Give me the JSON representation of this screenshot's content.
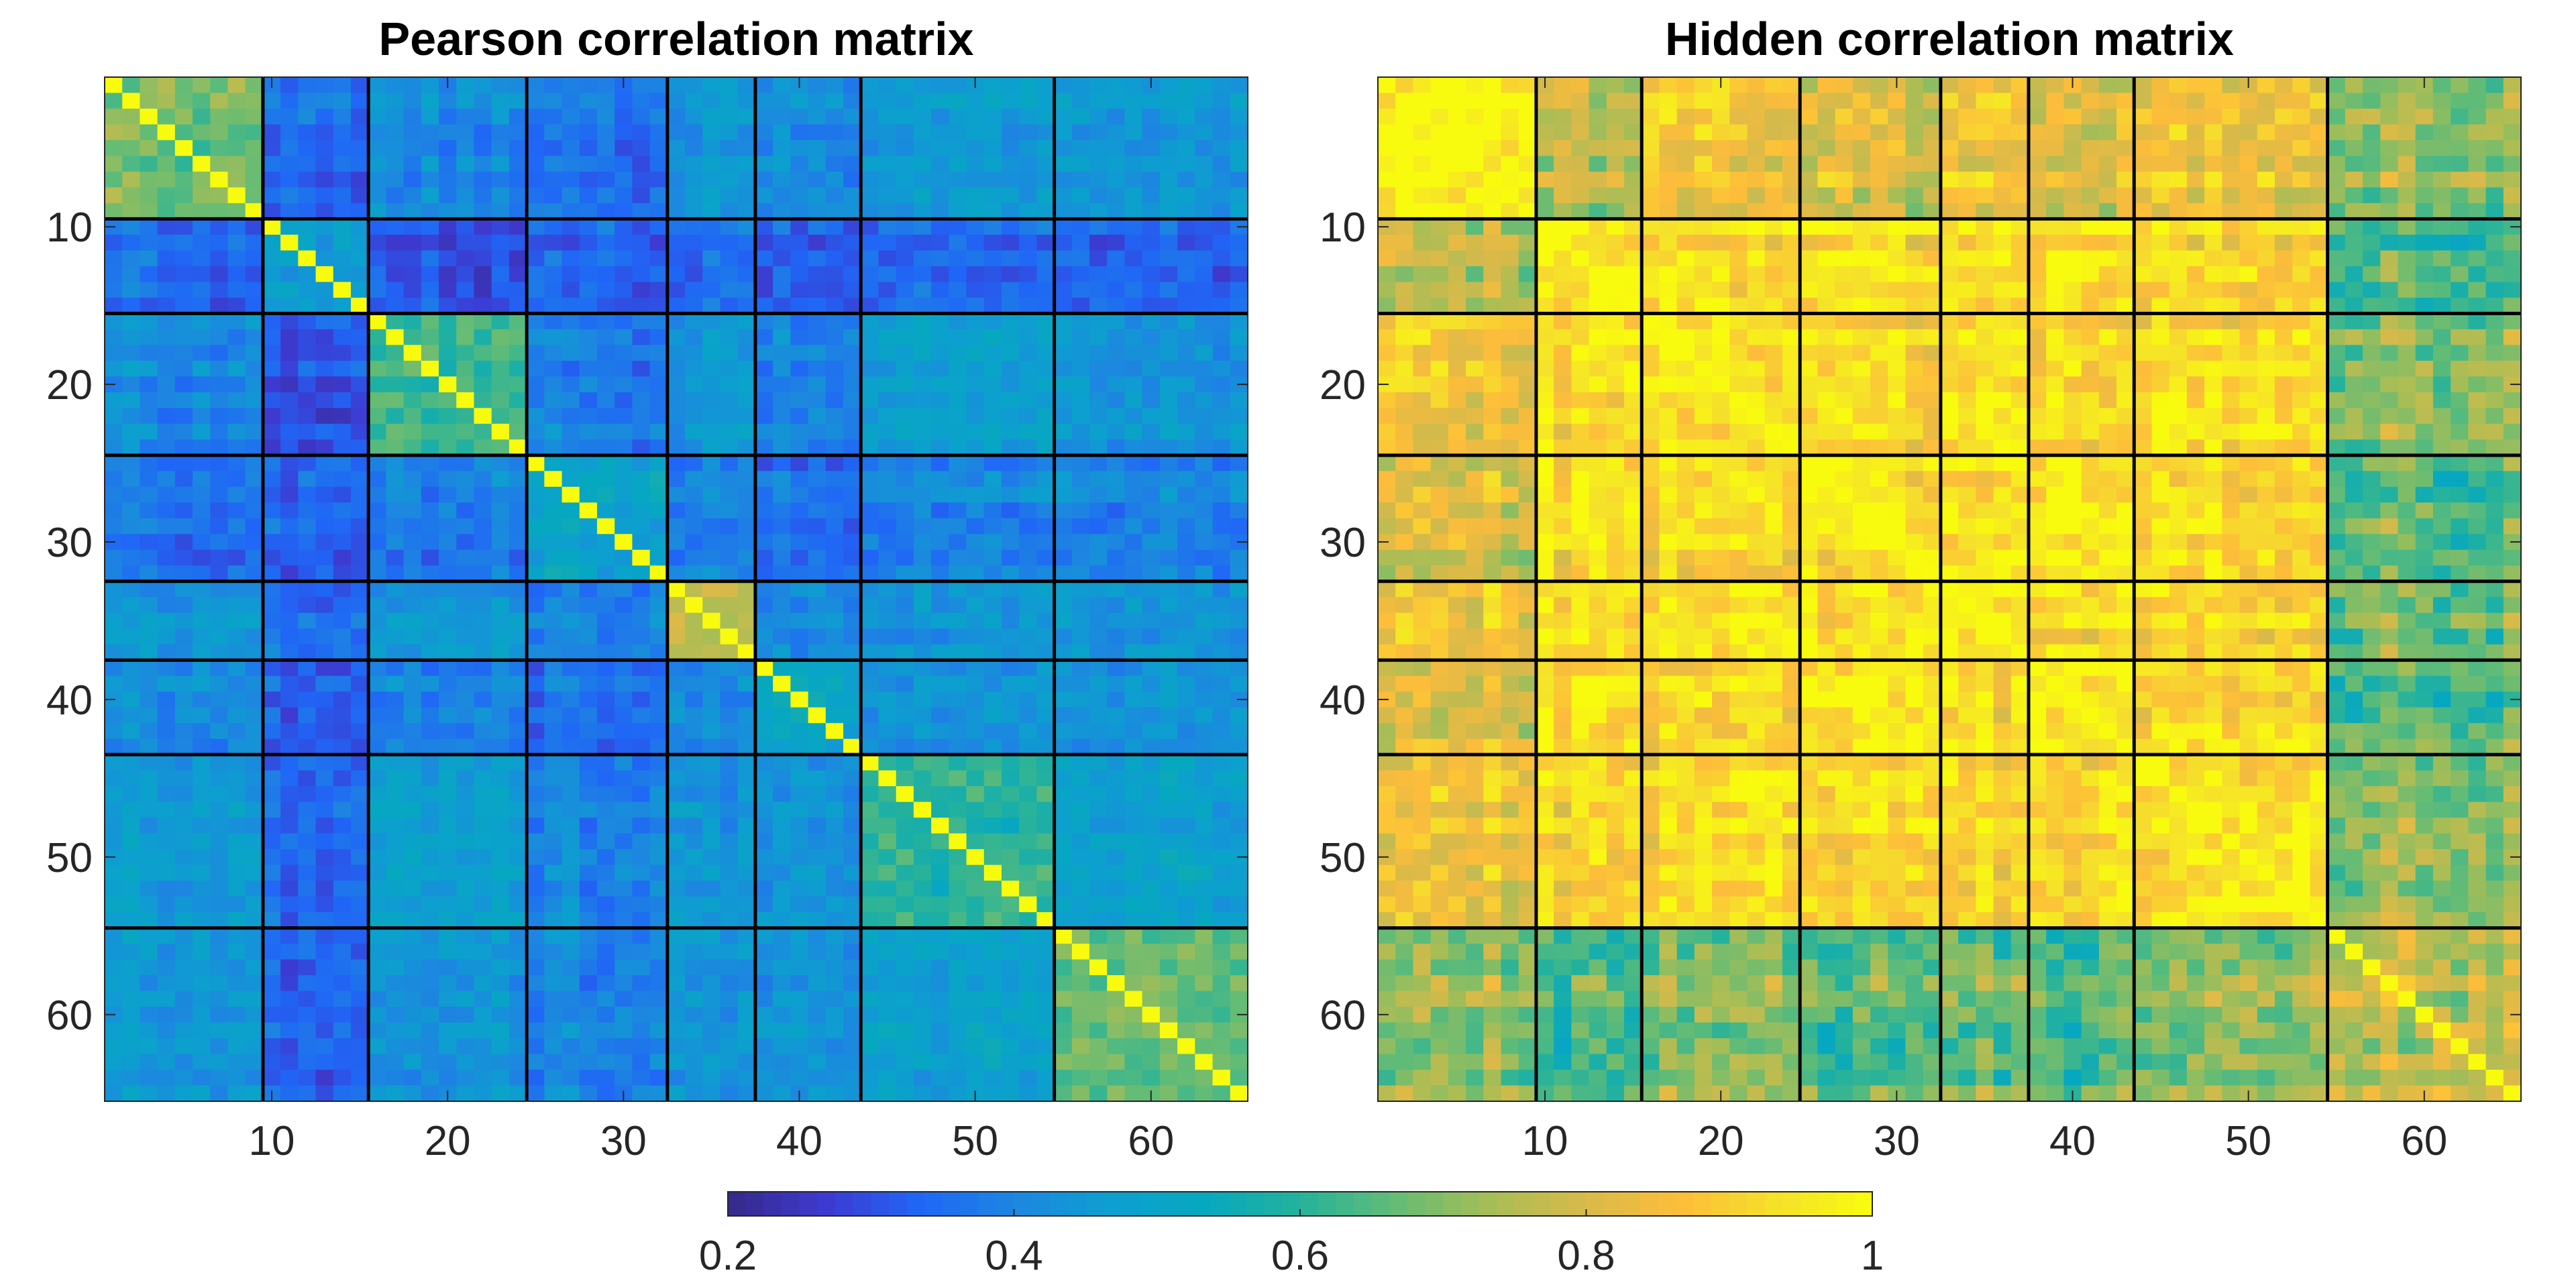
{
  "chart_data": [
    {
      "type": "heatmap",
      "title": "Pearson correlation matrix",
      "size": 65,
      "colormap": "parula",
      "clim": [
        0.2,
        1
      ],
      "xlabel": "",
      "ylabel": "",
      "xticks": [
        10,
        20,
        30,
        40,
        50,
        60
      ],
      "xtick_labels": [
        "10",
        "20",
        "30",
        "40",
        "50",
        "60"
      ],
      "yticks": [
        10,
        20,
        30,
        40,
        50,
        60
      ],
      "ytick_labels": [
        "10",
        "20",
        "30",
        "40",
        "50",
        "60"
      ],
      "group_boundaries": [
        9.5,
        15.5,
        24.5,
        32.5,
        37.5,
        43.5,
        54.5
      ],
      "block_means": [
        [
          0.68,
          0.36,
          0.42,
          0.36,
          0.44,
          0.42,
          0.46,
          0.45
        ],
        [
          0.36,
          0.5,
          0.32,
          0.34,
          0.36,
          0.33,
          0.35,
          0.34
        ],
        [
          0.42,
          0.32,
          0.64,
          0.38,
          0.44,
          0.4,
          0.48,
          0.44
        ],
        [
          0.36,
          0.34,
          0.38,
          0.5,
          0.4,
          0.36,
          0.4,
          0.4
        ],
        [
          0.44,
          0.36,
          0.44,
          0.4,
          0.74,
          0.42,
          0.44,
          0.44
        ],
        [
          0.42,
          0.33,
          0.4,
          0.36,
          0.42,
          0.5,
          0.42,
          0.42
        ],
        [
          0.46,
          0.35,
          0.48,
          0.4,
          0.44,
          0.42,
          0.6,
          0.48
        ],
        [
          0.45,
          0.34,
          0.44,
          0.4,
          0.44,
          0.42,
          0.48,
          0.66
        ]
      ],
      "diagonal": 1
    },
    {
      "type": "heatmap",
      "title": "Hidden correlation matrix",
      "size": 65,
      "colormap": "parula",
      "clim": [
        0.2,
        1
      ],
      "xlabel": "",
      "ylabel": "",
      "xticks": [
        10,
        20,
        30,
        40,
        50,
        60
      ],
      "xtick_labels": [
        "10",
        "20",
        "30",
        "40",
        "50",
        "60"
      ],
      "yticks": [
        10,
        20,
        30,
        40,
        50,
        60
      ],
      "ytick_labels": [
        "10",
        "20",
        "30",
        "40",
        "50",
        "60"
      ],
      "group_boundaries": [
        9.5,
        15.5,
        24.5,
        32.5,
        37.5,
        43.5,
        54.5
      ],
      "block_means": [
        [
          0.98,
          0.76,
          0.86,
          0.8,
          0.84,
          0.8,
          0.86,
          0.72
        ],
        [
          0.76,
          0.96,
          0.92,
          0.94,
          0.92,
          0.94,
          0.92,
          0.64
        ],
        [
          0.86,
          0.92,
          0.94,
          0.9,
          0.92,
          0.9,
          0.92,
          0.7
        ],
        [
          0.8,
          0.94,
          0.9,
          0.96,
          0.92,
          0.96,
          0.92,
          0.66
        ],
        [
          0.84,
          0.92,
          0.92,
          0.92,
          0.94,
          0.92,
          0.92,
          0.68
        ],
        [
          0.8,
          0.94,
          0.9,
          0.96,
          0.92,
          0.96,
          0.92,
          0.66
        ],
        [
          0.86,
          0.92,
          0.92,
          0.92,
          0.92,
          0.92,
          0.94,
          0.7
        ],
        [
          0.72,
          0.64,
          0.7,
          0.66,
          0.68,
          0.66,
          0.7,
          0.78
        ]
      ],
      "diagonal": 1
    }
  ],
  "colorbar": {
    "ticks": [
      0.2,
      0.4,
      0.6,
      0.8,
      1
    ],
    "tick_labels": [
      "0.2",
      "0.4",
      "0.6",
      "0.8",
      "1"
    ]
  },
  "colors": {
    "parula": [
      "#352a87",
      "#3e39cf",
      "#2066f6",
      "#1d86e0",
      "#0d9fcf",
      "#06a8c0",
      "#25b29c",
      "#64bc75",
      "#a7bd56",
      "#d9ba49",
      "#fdbd3a",
      "#f5e12a",
      "#f9fb0e"
    ],
    "grid": "#000000",
    "text": "#262626",
    "axis": "#262626"
  }
}
